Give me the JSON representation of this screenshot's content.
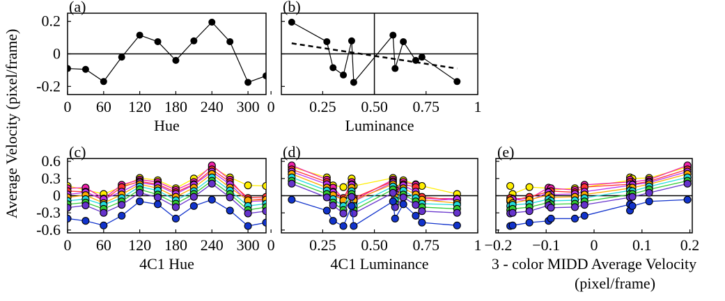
{
  "figure": {
    "shared_ylabel": "Average Velocity (pixel/frame)"
  },
  "chart_data": [
    {
      "panel": "(a)",
      "type": "line",
      "xlabel": "Hue",
      "ylabel": "",
      "xlim": [
        0,
        330
      ],
      "ylim": [
        -0.25,
        0.25
      ],
      "xticks": [
        0,
        60,
        120,
        180,
        240,
        300
      ],
      "xticklabels": [
        "0",
        "60",
        "120",
        "180",
        "240",
        "300"
      ],
      "yticks": [
        0.2,
        0,
        -0.2
      ],
      "yticklabels": [
        "0.2",
        "0",
        "-0.2"
      ],
      "hline": 0,
      "series": [
        {
          "color": "#000000",
          "x": [
            0,
            30,
            60,
            90,
            120,
            150,
            180,
            210,
            240,
            270,
            300,
            330
          ],
          "y": [
            -0.09,
            -0.095,
            -0.17,
            -0.02,
            0.115,
            0.075,
            -0.04,
            0.08,
            0.195,
            0.075,
            -0.175,
            -0.135
          ]
        }
      ]
    },
    {
      "panel": "(b)",
      "type": "line",
      "xlabel": "Luminance",
      "ylabel": "",
      "xlim": [
        0.05,
        1.0
      ],
      "ylim": [
        -0.25,
        0.25
      ],
      "xticks": [
        0,
        0.25,
        0.5,
        0.75,
        1
      ],
      "xticklabels": [
        "0",
        "0.25",
        "0.50",
        "0.75",
        "1"
      ],
      "yticks": [
        0.2,
        0,
        -0.2
      ],
      "yticklabels": [],
      "hline": 0,
      "vline": 0.5,
      "series": [
        {
          "color": "#000000",
          "x": [
            0.1,
            0.27,
            0.3,
            0.35,
            0.39,
            0.4,
            0.59,
            0.6,
            0.64,
            0.7,
            0.73,
            0.9
          ],
          "y": [
            0.195,
            0.075,
            -0.085,
            -0.13,
            0.08,
            -0.175,
            0.115,
            -0.09,
            0.075,
            -0.04,
            -0.02,
            -0.17
          ]
        }
      ],
      "trendline": {
        "x": [
          0.1,
          0.9
        ],
        "y": [
          0.065,
          -0.09
        ],
        "style": "dashed"
      }
    },
    {
      "panel": "(c)",
      "type": "line",
      "xlabel": "4C1 Hue",
      "ylabel": "",
      "xlim": [
        0,
        330
      ],
      "ylim": [
        -0.65,
        0.65
      ],
      "xticks": [
        0,
        60,
        120,
        180,
        240,
        300
      ],
      "xticklabels": [
        "0",
        "60",
        "120",
        "180",
        "240",
        "300"
      ],
      "yticks": [
        0.6,
        0.3,
        0,
        -0.3,
        -0.6
      ],
      "yticklabels": [
        "0.6",
        "0.3",
        "0",
        "-0.3",
        "-0.6"
      ],
      "hline": 0,
      "x": [
        0,
        30,
        60,
        90,
        120,
        150,
        180,
        210,
        240,
        270,
        300,
        330
      ],
      "series": [
        {
          "color": "#ffee00",
          "y": [
            0.17,
            0.1,
            0.03,
            0.15,
            0.31,
            0.27,
            0.13,
            0.3,
            0.5,
            0.32,
            0.18,
            0.17
          ]
        },
        {
          "color": "#ee22aa",
          "y": [
            0.13,
            0.14,
            -0.05,
            0.19,
            0.28,
            0.24,
            0.1,
            0.24,
            0.53,
            0.28,
            -0.08,
            -0.05
          ]
        },
        {
          "color": "#ff3333",
          "y": [
            0.08,
            0.07,
            -0.08,
            0.15,
            0.25,
            0.2,
            0.06,
            0.2,
            0.46,
            0.24,
            -0.04,
            -0.02
          ]
        },
        {
          "color": "#bb33ee",
          "y": [
            0.02,
            0.06,
            -0.06,
            0.07,
            0.23,
            0.18,
            0.03,
            0.19,
            0.42,
            0.2,
            -0.1,
            -0.09
          ]
        },
        {
          "color": "#ffaa00",
          "y": [
            -0.03,
            0.01,
            -0.13,
            0.02,
            0.2,
            0.13,
            -0.02,
            0.14,
            0.38,
            0.14,
            -0.08,
            -0.07
          ]
        },
        {
          "color": "#22dddd",
          "y": [
            -0.09,
            -0.06,
            -0.16,
            -0.04,
            0.16,
            0.09,
            -0.08,
            0.08,
            0.32,
            0.09,
            -0.18,
            -0.14
          ]
        },
        {
          "color": "#33cc33",
          "y": [
            -0.15,
            -0.12,
            -0.23,
            -0.1,
            0.11,
            0.02,
            -0.14,
            0.03,
            0.26,
            0.03,
            -0.25,
            -0.2
          ]
        },
        {
          "color": "#6633cc",
          "y": [
            -0.21,
            -0.17,
            -0.3,
            -0.16,
            0.05,
            -0.03,
            -0.2,
            -0.02,
            0.21,
            -0.03,
            -0.31,
            -0.27
          ]
        },
        {
          "color": "#1133cc",
          "y": [
            -0.4,
            -0.44,
            -0.52,
            -0.35,
            -0.1,
            -0.15,
            -0.4,
            -0.18,
            -0.07,
            -0.26,
            -0.53,
            -0.47
          ]
        }
      ]
    },
    {
      "panel": "(d)",
      "type": "line",
      "xlabel": "4C1 Luminance",
      "ylabel": "",
      "xlim": [
        0.05,
        1.0
      ],
      "ylim": [
        -0.65,
        0.65
      ],
      "xticks": [
        0,
        0.25,
        0.5,
        0.75,
        1
      ],
      "xticklabels": [
        "0",
        "0.25",
        "0.50",
        "0.75",
        "1"
      ],
      "yticks": [
        0.6,
        0.3,
        0,
        -0.3,
        -0.6
      ],
      "yticklabels": [],
      "hline": 0,
      "x": [
        0.1,
        0.27,
        0.3,
        0.35,
        0.39,
        0.4,
        0.59,
        0.6,
        0.64,
        0.7,
        0.73,
        0.9
      ],
      "series": [
        {
          "color": "#ffee00",
          "y": [
            0.5,
            0.32,
            0.18,
            0.15,
            0.3,
            0.17,
            0.31,
            0.13,
            0.27,
            0.2,
            0.17,
            0.03
          ]
        },
        {
          "color": "#ee22aa",
          "y": [
            0.53,
            0.28,
            0.14,
            -0.05,
            0.24,
            -0.08,
            0.28,
            0.1,
            0.24,
            0.19,
            -0.05,
            -0.05
          ]
        },
        {
          "color": "#ff3333",
          "y": [
            0.46,
            0.24,
            0.07,
            -0.04,
            0.2,
            -0.04,
            0.25,
            0.06,
            0.2,
            0.15,
            -0.02,
            -0.08
          ]
        },
        {
          "color": "#bb33ee",
          "y": [
            0.42,
            0.2,
            0.06,
            -0.1,
            0.19,
            -0.1,
            0.23,
            0.03,
            0.18,
            0.07,
            -0.09,
            -0.06
          ]
        },
        {
          "color": "#ffaa00",
          "y": [
            0.38,
            0.14,
            0.01,
            -0.08,
            0.14,
            -0.08,
            0.2,
            -0.02,
            0.13,
            0.02,
            -0.07,
            -0.13
          ]
        },
        {
          "color": "#22dddd",
          "y": [
            0.32,
            0.09,
            -0.06,
            -0.18,
            0.08,
            -0.18,
            0.16,
            -0.08,
            0.09,
            -0.04,
            -0.14,
            -0.16
          ]
        },
        {
          "color": "#33cc33",
          "y": [
            0.26,
            0.03,
            -0.12,
            -0.25,
            0.03,
            -0.25,
            0.11,
            -0.14,
            0.02,
            -0.1,
            -0.2,
            -0.23
          ]
        },
        {
          "color": "#6633cc",
          "y": [
            0.21,
            -0.03,
            -0.17,
            -0.31,
            -0.02,
            -0.31,
            0.05,
            -0.2,
            -0.03,
            -0.16,
            -0.27,
            -0.3
          ]
        },
        {
          "color": "#1133cc",
          "y": [
            -0.07,
            -0.26,
            -0.44,
            -0.53,
            -0.18,
            -0.53,
            -0.1,
            -0.4,
            -0.15,
            -0.35,
            -0.47,
            -0.52
          ]
        }
      ]
    },
    {
      "panel": "(e)",
      "type": "line",
      "xlabel": "3 - color MIDD Average Velocity",
      "xlabel2": "(pixel/frame)",
      "ylabel": "",
      "xlim": [
        -0.205,
        0.205
      ],
      "ylim": [
        -0.65,
        0.65
      ],
      "xticks": [
        -0.2,
        -0.1,
        0,
        0.1,
        0.2
      ],
      "xticklabels": [
        "−0.2",
        "−0.1",
        "0",
        "0.1",
        "0.2"
      ],
      "yticks": [
        0.6,
        0.3,
        0,
        -0.3,
        -0.6
      ],
      "yticklabels": [],
      "hline": 0,
      "x": [
        -0.175,
        -0.17,
        -0.135,
        -0.095,
        -0.09,
        -0.04,
        -0.02,
        0.075,
        0.075,
        0.08,
        0.115,
        0.195
      ],
      "series": [
        {
          "color": "#ffee00",
          "y": [
            0.17,
            0.03,
            0.15,
            0.13,
            0.1,
            0.13,
            0.15,
            0.27,
            0.32,
            0.3,
            0.31,
            0.5
          ]
        },
        {
          "color": "#ee22aa",
          "y": [
            -0.08,
            -0.05,
            -0.05,
            0.14,
            0.13,
            0.1,
            0.19,
            0.24,
            0.28,
            0.24,
            0.28,
            0.53
          ]
        },
        {
          "color": "#ff3333",
          "y": [
            -0.04,
            -0.08,
            -0.02,
            0.07,
            0.08,
            0.06,
            0.15,
            0.2,
            0.24,
            0.2,
            0.25,
            0.46
          ]
        },
        {
          "color": "#bb33ee",
          "y": [
            -0.1,
            -0.06,
            -0.09,
            0.06,
            0.02,
            0.03,
            0.07,
            0.18,
            0.2,
            0.19,
            0.23,
            0.42
          ]
        },
        {
          "color": "#ffaa00",
          "y": [
            -0.08,
            -0.13,
            -0.07,
            0.01,
            -0.03,
            -0.02,
            0.02,
            0.13,
            0.14,
            0.14,
            0.2,
            0.38
          ]
        },
        {
          "color": "#22dddd",
          "y": [
            -0.18,
            -0.16,
            -0.14,
            -0.06,
            -0.09,
            -0.08,
            -0.04,
            0.09,
            0.09,
            0.08,
            0.16,
            0.32
          ]
        },
        {
          "color": "#33cc33",
          "y": [
            -0.25,
            -0.23,
            -0.2,
            -0.12,
            -0.15,
            -0.14,
            -0.1,
            0.02,
            0.03,
            0.03,
            0.11,
            0.26
          ]
        },
        {
          "color": "#6633cc",
          "y": [
            -0.31,
            -0.3,
            -0.27,
            -0.17,
            -0.21,
            -0.2,
            -0.16,
            -0.03,
            -0.03,
            -0.02,
            0.05,
            0.21
          ]
        },
        {
          "color": "#1133cc",
          "y": [
            -0.53,
            -0.52,
            -0.47,
            -0.44,
            -0.4,
            -0.4,
            -0.35,
            -0.15,
            -0.26,
            -0.18,
            -0.1,
            -0.07
          ]
        }
      ]
    }
  ]
}
